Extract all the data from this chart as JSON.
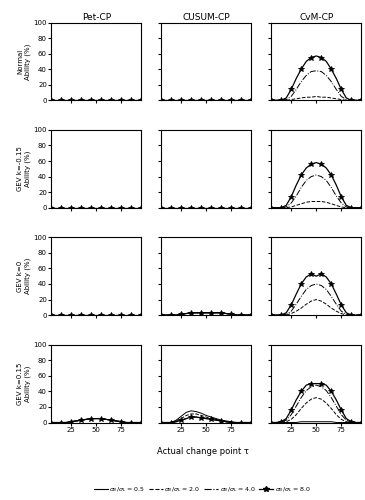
{
  "col_titles": [
    "Pet-CP",
    "CUSUM-CP",
    "CvM-CP"
  ],
  "row_ylabel": [
    "Normal",
    "GEV k=-0.15",
    "GEV k=0",
    "GEV k=0.15"
  ],
  "xlabel": "Actual change point τ",
  "ylabel": "Ability (%)",
  "tau": [
    5,
    10,
    15,
    20,
    25,
    30,
    35,
    40,
    45,
    50,
    55,
    60,
    65,
    70,
    75,
    80,
    85,
    90,
    95
  ],
  "ylim": [
    0,
    100
  ],
  "yticks": [
    0,
    20,
    40,
    60,
    80,
    100
  ],
  "xticks": [
    25,
    50,
    75
  ],
  "data": {
    "row0": {
      "col0": {
        "s05": [
          0,
          0,
          0,
          0,
          0,
          0,
          0,
          0,
          0,
          0,
          0,
          0,
          0,
          0,
          0,
          0,
          0,
          0,
          0
        ],
        "s20": [
          0,
          0,
          0,
          0,
          0,
          0,
          0,
          0,
          0,
          0,
          0,
          0,
          0,
          0,
          0,
          0,
          0,
          0,
          0
        ],
        "s40": [
          0,
          0,
          0,
          0,
          0,
          0,
          0,
          0,
          0,
          0,
          0,
          0,
          0,
          0,
          0,
          0,
          0,
          0,
          0
        ],
        "s80": [
          0,
          0,
          0,
          0,
          0,
          0,
          0,
          0,
          0,
          0,
          0,
          0,
          0,
          0,
          0,
          0,
          0,
          0,
          0
        ]
      },
      "col1": {
        "s05": [
          0,
          0,
          0,
          0,
          0,
          0,
          0,
          0,
          0,
          0,
          0,
          0,
          0,
          0,
          0,
          0,
          0,
          0,
          0
        ],
        "s20": [
          0,
          0,
          0,
          0,
          0,
          0,
          0,
          0,
          0,
          0,
          0,
          0,
          0,
          0,
          0,
          0,
          0,
          0,
          0
        ],
        "s40": [
          0,
          0,
          0,
          0,
          0,
          0,
          0,
          0,
          0,
          0,
          0,
          0,
          0,
          0,
          0,
          0,
          0,
          0,
          0
        ],
        "s80": [
          0,
          0,
          0,
          0,
          0,
          0,
          0,
          0,
          0,
          0,
          0,
          0,
          0,
          0,
          0,
          0,
          0,
          0,
          0
        ]
      },
      "col2": {
        "s05": [
          0,
          0,
          0,
          0,
          0,
          0,
          0,
          0,
          0,
          0,
          0,
          0,
          0,
          0,
          0,
          0,
          0,
          0,
          0
        ],
        "s20": [
          0,
          0,
          0,
          0,
          1,
          2,
          3,
          4,
          4,
          5,
          4,
          4,
          3,
          2,
          1,
          0,
          0,
          0,
          0
        ],
        "s40": [
          0,
          0,
          0,
          1,
          5,
          14,
          24,
          32,
          37,
          38,
          37,
          32,
          24,
          14,
          5,
          1,
          0,
          0,
          0
        ],
        "s80": [
          0,
          0,
          0,
          3,
          14,
          28,
          40,
          50,
          55,
          57,
          55,
          50,
          40,
          28,
          14,
          3,
          0,
          0,
          0
        ]
      }
    },
    "row1": {
      "col0": {
        "s05": [
          0,
          0,
          0,
          0,
          0,
          0,
          0,
          0,
          0,
          0,
          0,
          0,
          0,
          0,
          0,
          0,
          0,
          0,
          0
        ],
        "s20": [
          0,
          0,
          0,
          0,
          0,
          0,
          0,
          0,
          0,
          0,
          0,
          0,
          0,
          0,
          0,
          0,
          0,
          0,
          0
        ],
        "s40": [
          0,
          0,
          0,
          0,
          0,
          0,
          0,
          0,
          0,
          0,
          0,
          0,
          0,
          0,
          0,
          0,
          0,
          0,
          0
        ],
        "s80": [
          0,
          0,
          0,
          0,
          0,
          0,
          0,
          0,
          0,
          0,
          0,
          0,
          0,
          0,
          0,
          0,
          0,
          0,
          0
        ]
      },
      "col1": {
        "s05": [
          0,
          0,
          0,
          0,
          0,
          0,
          0,
          0,
          0,
          0,
          0,
          0,
          0,
          0,
          0,
          0,
          0,
          0,
          0
        ],
        "s20": [
          0,
          0,
          0,
          0,
          0,
          0,
          0,
          0,
          0,
          0,
          0,
          0,
          0,
          0,
          0,
          0,
          0,
          0,
          0
        ],
        "s40": [
          0,
          0,
          0,
          0,
          0,
          0,
          0,
          0,
          0,
          0,
          0,
          0,
          0,
          0,
          0,
          0,
          0,
          0,
          0
        ],
        "s80": [
          0,
          0,
          0,
          0,
          0,
          0,
          0,
          0,
          0,
          0,
          0,
          0,
          0,
          0,
          0,
          0,
          0,
          0,
          0
        ]
      },
      "col2": {
        "s05": [
          0,
          0,
          0,
          0,
          0,
          0,
          0,
          0,
          0,
          0,
          0,
          0,
          0,
          0,
          0,
          0,
          0,
          0,
          0
        ],
        "s20": [
          0,
          0,
          0,
          0,
          1,
          3,
          5,
          7,
          8,
          8,
          8,
          7,
          5,
          3,
          1,
          0,
          0,
          0,
          0
        ],
        "s40": [
          0,
          0,
          0,
          1,
          6,
          15,
          26,
          35,
          40,
          42,
          40,
          35,
          26,
          15,
          6,
          1,
          0,
          0,
          0
        ],
        "s80": [
          0,
          0,
          0,
          3,
          14,
          29,
          42,
          51,
          56,
          58,
          56,
          51,
          42,
          29,
          14,
          3,
          0,
          0,
          0
        ]
      }
    },
    "row2": {
      "col0": {
        "s05": [
          0,
          0,
          0,
          0,
          0,
          0,
          0,
          0,
          0,
          0,
          0,
          0,
          0,
          0,
          0,
          0,
          0,
          0,
          0
        ],
        "s20": [
          0,
          0,
          0,
          0,
          0,
          0,
          0,
          0,
          0,
          0,
          0,
          0,
          0,
          0,
          0,
          0,
          0,
          0,
          0
        ],
        "s40": [
          0,
          0,
          0,
          0,
          0,
          0,
          0,
          0,
          0,
          0,
          0,
          0,
          0,
          0,
          0,
          0,
          0,
          0,
          0
        ],
        "s80": [
          0,
          0,
          0,
          0,
          0,
          0,
          0,
          0,
          0,
          0,
          0,
          0,
          0,
          0,
          0,
          0,
          0,
          0,
          0
        ]
      },
      "col1": {
        "s05": [
          0,
          0,
          0,
          0,
          1,
          2,
          3,
          3,
          3,
          3,
          3,
          3,
          3,
          2,
          1,
          0,
          0,
          0,
          0
        ],
        "s20": [
          0,
          0,
          0,
          0,
          1,
          2,
          3,
          3,
          3,
          3,
          3,
          3,
          3,
          2,
          1,
          0,
          0,
          0,
          0
        ],
        "s40": [
          0,
          0,
          0,
          0,
          1,
          2,
          3,
          3,
          3,
          3,
          3,
          3,
          3,
          2,
          1,
          0,
          0,
          0,
          0
        ],
        "s80": [
          0,
          0,
          0,
          0,
          1,
          2,
          3,
          3,
          3,
          3,
          3,
          3,
          3,
          2,
          1,
          0,
          0,
          0,
          0
        ]
      },
      "col2": {
        "s05": [
          0,
          0,
          0,
          0,
          0,
          0,
          0,
          0,
          0,
          0,
          0,
          0,
          0,
          0,
          0,
          0,
          0,
          0,
          0
        ],
        "s20": [
          0,
          0,
          0,
          0,
          2,
          5,
          9,
          14,
          18,
          20,
          18,
          14,
          9,
          5,
          2,
          0,
          0,
          0,
          0
        ],
        "s40": [
          0,
          0,
          0,
          1,
          5,
          14,
          24,
          33,
          38,
          40,
          38,
          33,
          24,
          14,
          5,
          1,
          0,
          0,
          0
        ],
        "s80": [
          0,
          0,
          0,
          3,
          13,
          27,
          40,
          49,
          53,
          50,
          53,
          49,
          40,
          27,
          13,
          3,
          0,
          0,
          0
        ]
      }
    },
    "row3": {
      "col0": {
        "s05": [
          0,
          0,
          0,
          0,
          1,
          2,
          3,
          4,
          5,
          5,
          5,
          4,
          3,
          2,
          1,
          0,
          0,
          0,
          0
        ],
        "s20": [
          0,
          0,
          0,
          0,
          1,
          2,
          3,
          4,
          5,
          5,
          5,
          4,
          3,
          2,
          1,
          0,
          0,
          0,
          0
        ],
        "s40": [
          0,
          0,
          0,
          0,
          1,
          2,
          3,
          4,
          5,
          5,
          5,
          4,
          3,
          2,
          1,
          0,
          0,
          0,
          0
        ],
        "s80": [
          0,
          0,
          0,
          0,
          1,
          2,
          3,
          4,
          5,
          5,
          5,
          4,
          3,
          2,
          1,
          0,
          0,
          0,
          0
        ]
      },
      "col1": {
        "s05": [
          0,
          0,
          0,
          3,
          8,
          13,
          15,
          14,
          12,
          9,
          7,
          5,
          3,
          2,
          1,
          0,
          0,
          0,
          0
        ],
        "s20": [
          0,
          0,
          0,
          2,
          5,
          9,
          11,
          11,
          9,
          7,
          5,
          4,
          2,
          1,
          0,
          0,
          0,
          0,
          0
        ],
        "s40": [
          0,
          0,
          0,
          1,
          3,
          5,
          7,
          7,
          6,
          5,
          4,
          3,
          2,
          1,
          0,
          0,
          0,
          0,
          0
        ],
        "s80": [
          0,
          0,
          0,
          1,
          3,
          5,
          7,
          7,
          6,
          5,
          4,
          3,
          2,
          1,
          0,
          0,
          0,
          0,
          0
        ]
      },
      "col2": {
        "s05": [
          0,
          0,
          0,
          0,
          0,
          0,
          1,
          1,
          1,
          1,
          1,
          1,
          1,
          0,
          0,
          0,
          0,
          0,
          0
        ],
        "s20": [
          0,
          0,
          0,
          1,
          4,
          10,
          18,
          25,
          30,
          32,
          30,
          25,
          18,
          10,
          4,
          1,
          0,
          0,
          0
        ],
        "s40": [
          0,
          0,
          1,
          3,
          10,
          21,
          32,
          41,
          46,
          48,
          46,
          41,
          32,
          21,
          10,
          3,
          1,
          0,
          0
        ],
        "s80": [
          0,
          0,
          1,
          5,
          16,
          29,
          40,
          48,
          50,
          50,
          50,
          48,
          40,
          29,
          16,
          5,
          1,
          0,
          0
        ]
      }
    }
  }
}
